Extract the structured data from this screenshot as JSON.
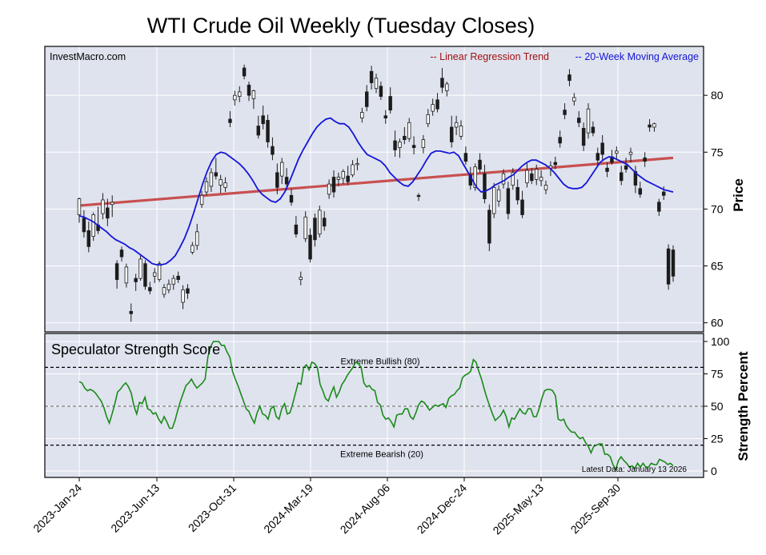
{
  "chart_data": {
    "type": "candlestick",
    "title": "WTI Crude Oil Weekly (Tuesday Closes)",
    "watermark": "InvestMacro.com",
    "legend": [
      {
        "label": "-- Linear Regression Trend",
        "color": "#a01010"
      },
      {
        "label": "-- 20-Week Moving Average",
        "color": "#1515d8"
      }
    ],
    "x_tick_labels": [
      "2023-Jan-24",
      "2023-Jun-13",
      "2023-Oct-31",
      "2024-Mar-19",
      "2024-Aug-06",
      "2024-Dec-24",
      "2025-May-13",
      "2025-Sep-30"
    ],
    "price_panel": {
      "ylabel": "Price",
      "ylim": [
        59.2,
        84.3
      ],
      "yticks": [
        60,
        65,
        70,
        75,
        80
      ],
      "regression_trend": {
        "start": 70.3,
        "end": 74.5,
        "color": "#c85050"
      },
      "moving_average_20w": [
        69.4,
        69.3,
        69.1,
        68.9,
        68.6,
        68.3,
        68.0,
        67.6,
        67.3,
        67.1,
        66.9,
        66.6,
        66.4,
        66.1,
        65.8,
        65.5,
        65.2,
        65.1,
        65.1,
        65.2,
        65.5,
        65.9,
        66.6,
        67.4,
        68.4,
        69.6,
        70.9,
        72.2,
        73.3,
        74.2,
        74.8,
        75.0,
        74.9,
        74.6,
        74.3,
        74.0,
        73.6,
        73.1,
        72.5,
        71.8,
        71.3,
        71.0,
        70.7,
        70.6,
        70.9,
        71.5,
        72.4,
        73.4,
        74.4,
        75.2,
        75.9,
        76.6,
        77.2,
        77.6,
        77.9,
        78.0,
        77.7,
        77.5,
        77.5,
        77.2,
        76.6,
        75.9,
        75.3,
        74.8,
        74.6,
        74.4,
        74.2,
        73.8,
        73.2,
        72.8,
        72.4,
        72.1,
        72.0,
        72.4,
        73.0,
        73.6,
        74.3,
        74.9,
        75.1,
        75.1,
        75.0,
        74.9,
        75.0,
        74.7,
        74.0,
        73.3,
        72.6,
        71.9,
        71.5,
        71.6,
        71.8,
        72.1,
        72.3,
        72.5,
        72.8,
        73.0,
        73.4,
        73.8,
        74.1,
        74.3,
        74.3,
        74.1,
        73.9,
        73.6,
        73.2,
        72.7,
        72.2,
        71.9,
        71.8,
        71.8,
        71.9,
        72.3,
        72.9,
        73.5,
        74.1,
        74.4,
        74.6,
        74.5,
        74.3,
        74.1,
        73.9,
        73.5,
        73.1,
        72.8,
        72.5,
        72.3,
        72.1,
        71.9,
        71.7,
        71.6,
        71.5
      ],
      "candles": [
        {
          "o": 69.5,
          "h": 71.0,
          "l": 68.8,
          "c": 70.9
        },
        {
          "o": 69.2,
          "h": 69.9,
          "l": 67.5,
          "c": 68.0
        },
        {
          "o": 68.1,
          "h": 68.9,
          "l": 66.2,
          "c": 66.7
        },
        {
          "o": 67.6,
          "h": 69.7,
          "l": 67.2,
          "c": 69.5
        },
        {
          "o": 68.6,
          "h": 70.2,
          "l": 67.8,
          "c": 68.1
        },
        {
          "o": 69.6,
          "h": 71.4,
          "l": 69.1,
          "c": 70.8
        },
        {
          "o": 70.1,
          "h": 70.9,
          "l": 68.5,
          "c": 69.2
        },
        {
          "o": 70.4,
          "h": 71.2,
          "l": 69.3,
          "c": 70.6
        },
        {
          "o": 65.2,
          "h": 65.5,
          "l": 63.0,
          "c": 63.8
        },
        {
          "o": 66.4,
          "h": 66.7,
          "l": 65.4,
          "c": 65.8
        },
        {
          "o": 63.5,
          "h": 65.2,
          "l": 63.1,
          "c": 64.9
        },
        {
          "o": 61.0,
          "h": 61.7,
          "l": 60.1,
          "c": 60.8
        },
        {
          "o": 63.9,
          "h": 64.3,
          "l": 62.8,
          "c": 63.6
        },
        {
          "o": 63.9,
          "h": 65.9,
          "l": 63.7,
          "c": 65.6
        },
        {
          "o": 65.2,
          "h": 65.5,
          "l": 62.9,
          "c": 63.2
        },
        {
          "o": 63.1,
          "h": 63.6,
          "l": 62.5,
          "c": 62.8
        },
        {
          "o": 64.1,
          "h": 64.8,
          "l": 63.5,
          "c": 64.4
        },
        {
          "o": 63.8,
          "h": 65.4,
          "l": 63.6,
          "c": 65.2
        },
        {
          "o": 62.5,
          "h": 63.4,
          "l": 62.2,
          "c": 63.1
        },
        {
          "o": 62.9,
          "h": 63.8,
          "l": 62.6,
          "c": 63.4
        },
        {
          "o": 63.4,
          "h": 64.2,
          "l": 62.9,
          "c": 63.9
        },
        {
          "o": 64.1,
          "h": 64.5,
          "l": 63.5,
          "c": 63.8
        },
        {
          "o": 61.8,
          "h": 63.3,
          "l": 61.2,
          "c": 62.9
        },
        {
          "o": 63.0,
          "h": 63.4,
          "l": 62.1,
          "c": 62.6
        },
        {
          "o": 66.2,
          "h": 67.1,
          "l": 66.0,
          "c": 66.8
        },
        {
          "o": 66.8,
          "h": 68.7,
          "l": 66.4,
          "c": 68.0
        },
        {
          "o": 70.4,
          "h": 71.6,
          "l": 70.1,
          "c": 71.2
        },
        {
          "o": 71.5,
          "h": 72.8,
          "l": 71.2,
          "c": 72.4
        },
        {
          "o": 72.0,
          "h": 73.6,
          "l": 71.5,
          "c": 73.2
        },
        {
          "o": 73.2,
          "h": 74.5,
          "l": 72.6,
          "c": 72.9
        },
        {
          "o": 72.1,
          "h": 73.0,
          "l": 71.4,
          "c": 72.6
        },
        {
          "o": 71.9,
          "h": 72.8,
          "l": 71.5,
          "c": 72.3
        },
        {
          "o": 77.9,
          "h": 78.6,
          "l": 77.2,
          "c": 77.6
        },
        {
          "o": 79.6,
          "h": 80.4,
          "l": 79.1,
          "c": 80.0
        },
        {
          "o": 79.9,
          "h": 80.8,
          "l": 79.4,
          "c": 80.3
        },
        {
          "o": 82.4,
          "h": 82.7,
          "l": 81.4,
          "c": 81.7
        },
        {
          "o": 80.9,
          "h": 81.2,
          "l": 79.5,
          "c": 80.0
        },
        {
          "o": 79.7,
          "h": 80.5,
          "l": 78.8,
          "c": 80.4
        },
        {
          "o": 77.3,
          "h": 78.2,
          "l": 76.2,
          "c": 76.5
        },
        {
          "o": 78.2,
          "h": 79.1,
          "l": 77.0,
          "c": 77.5
        },
        {
          "o": 77.8,
          "h": 78.3,
          "l": 75.4,
          "c": 75.9
        },
        {
          "o": 75.5,
          "h": 76.3,
          "l": 74.3,
          "c": 74.8
        },
        {
          "o": 73.2,
          "h": 74.0,
          "l": 71.3,
          "c": 71.9
        },
        {
          "o": 72.9,
          "h": 74.5,
          "l": 72.2,
          "c": 74.1
        },
        {
          "o": 72.8,
          "h": 73.6,
          "l": 71.7,
          "c": 72.2
        },
        {
          "o": 71.2,
          "h": 71.8,
          "l": 70.3,
          "c": 70.6
        },
        {
          "o": 68.6,
          "h": 69.4,
          "l": 67.5,
          "c": 67.8
        },
        {
          "o": 63.8,
          "h": 64.5,
          "l": 63.3,
          "c": 64.0
        },
        {
          "o": 67.4,
          "h": 69.8,
          "l": 67.1,
          "c": 69.3
        },
        {
          "o": 67.7,
          "h": 68.3,
          "l": 65.3,
          "c": 65.6
        },
        {
          "o": 69.2,
          "h": 69.6,
          "l": 66.7,
          "c": 67.3
        },
        {
          "o": 67.8,
          "h": 70.3,
          "l": 67.5,
          "c": 69.9
        },
        {
          "o": 69.2,
          "h": 69.8,
          "l": 68.1,
          "c": 68.5
        },
        {
          "o": 71.3,
          "h": 72.6,
          "l": 70.9,
          "c": 72.2
        },
        {
          "o": 72.8,
          "h": 73.4,
          "l": 71.0,
          "c": 71.5
        },
        {
          "o": 72.6,
          "h": 73.2,
          "l": 72.0,
          "c": 72.8
        },
        {
          "o": 72.7,
          "h": 73.5,
          "l": 72.2,
          "c": 73.3
        },
        {
          "o": 72.9,
          "h": 73.8,
          "l": 72.1,
          "c": 72.4
        },
        {
          "o": 73.0,
          "h": 74.3,
          "l": 72.8,
          "c": 73.9
        },
        {
          "o": 73.9,
          "h": 74.5,
          "l": 73.4,
          "c": 74.0
        },
        {
          "o": 78.0,
          "h": 78.9,
          "l": 77.6,
          "c": 78.5
        },
        {
          "o": 80.3,
          "h": 80.9,
          "l": 78.6,
          "c": 79.0
        },
        {
          "o": 82.1,
          "h": 82.6,
          "l": 80.5,
          "c": 81.1
        },
        {
          "o": 80.6,
          "h": 81.9,
          "l": 80.2,
          "c": 81.5
        },
        {
          "o": 80.8,
          "h": 81.2,
          "l": 79.6,
          "c": 79.9
        },
        {
          "o": 78.2,
          "h": 78.7,
          "l": 77.5,
          "c": 78.0
        },
        {
          "o": 79.9,
          "h": 80.7,
          "l": 78.4,
          "c": 78.7
        },
        {
          "o": 76.0,
          "h": 76.9,
          "l": 74.6,
          "c": 75.2
        },
        {
          "o": 75.4,
          "h": 76.2,
          "l": 74.5,
          "c": 75.9
        },
        {
          "o": 76.4,
          "h": 77.2,
          "l": 75.7,
          "c": 76.1
        },
        {
          "o": 76.2,
          "h": 78.0,
          "l": 75.9,
          "c": 77.6
        },
        {
          "o": 75.6,
          "h": 76.4,
          "l": 74.8,
          "c": 75.4
        },
        {
          "o": 71.2,
          "h": 71.4,
          "l": 70.7,
          "c": 71.1
        },
        {
          "o": 75.4,
          "h": 76.5,
          "l": 74.9,
          "c": 76.1
        },
        {
          "o": 77.5,
          "h": 78.8,
          "l": 77.2,
          "c": 78.3
        },
        {
          "o": 78.6,
          "h": 79.7,
          "l": 78.2,
          "c": 79.2
        },
        {
          "o": 79.6,
          "h": 80.2,
          "l": 78.5,
          "c": 78.8
        },
        {
          "o": 81.5,
          "h": 82.4,
          "l": 80.2,
          "c": 80.7
        },
        {
          "o": 80.4,
          "h": 81.2,
          "l": 79.9,
          "c": 81.0
        },
        {
          "o": 77.2,
          "h": 78.2,
          "l": 75.4,
          "c": 75.9
        },
        {
          "o": 77.2,
          "h": 78.2,
          "l": 76.5,
          "c": 77.6
        },
        {
          "o": 76.4,
          "h": 77.8,
          "l": 76.1,
          "c": 77.3
        },
        {
          "o": 74.9,
          "h": 75.5,
          "l": 73.9,
          "c": 74.2
        },
        {
          "o": 73.0,
          "h": 73.7,
          "l": 71.7,
          "c": 72.1
        },
        {
          "o": 71.9,
          "h": 74.0,
          "l": 71.6,
          "c": 73.7
        },
        {
          "o": 74.3,
          "h": 74.9,
          "l": 73.2,
          "c": 73.5
        },
        {
          "o": 73.1,
          "h": 73.9,
          "l": 70.5,
          "c": 70.9
        },
        {
          "o": 69.9,
          "h": 70.4,
          "l": 66.3,
          "c": 67.0
        },
        {
          "o": 69.6,
          "h": 72.3,
          "l": 69.2,
          "c": 71.9
        },
        {
          "o": 70.7,
          "h": 72.1,
          "l": 70.2,
          "c": 71.7
        },
        {
          "o": 72.2,
          "h": 73.5,
          "l": 71.8,
          "c": 73.1
        },
        {
          "o": 71.8,
          "h": 72.4,
          "l": 69.1,
          "c": 69.6
        },
        {
          "o": 72.1,
          "h": 73.6,
          "l": 71.7,
          "c": 73.2
        },
        {
          "o": 71.9,
          "h": 72.6,
          "l": 70.4,
          "c": 70.8
        },
        {
          "o": 70.8,
          "h": 71.6,
          "l": 69.2,
          "c": 69.5
        },
        {
          "o": 72.3,
          "h": 74.0,
          "l": 71.9,
          "c": 73.4
        },
        {
          "o": 73.1,
          "h": 73.6,
          "l": 72.2,
          "c": 72.5
        },
        {
          "o": 72.6,
          "h": 73.9,
          "l": 72.1,
          "c": 73.5
        },
        {
          "o": 72.5,
          "h": 73.4,
          "l": 72.0,
          "c": 72.8
        },
        {
          "o": 71.7,
          "h": 72.5,
          "l": 71.3,
          "c": 72.1
        },
        {
          "o": 73.6,
          "h": 74.2,
          "l": 72.9,
          "c": 73.8
        },
        {
          "o": 74.1,
          "h": 74.6,
          "l": 73.5,
          "c": 73.9
        },
        {
          "o": 76.3,
          "h": 76.9,
          "l": 75.4,
          "c": 75.8
        },
        {
          "o": 78.7,
          "h": 79.3,
          "l": 77.9,
          "c": 78.3
        },
        {
          "o": 81.8,
          "h": 82.3,
          "l": 80.8,
          "c": 81.3
        },
        {
          "o": 79.5,
          "h": 80.2,
          "l": 79.1,
          "c": 79.8
        },
        {
          "o": 78.0,
          "h": 78.6,
          "l": 77.2,
          "c": 77.6
        },
        {
          "o": 77.1,
          "h": 77.6,
          "l": 75.1,
          "c": 75.6
        },
        {
          "o": 76.7,
          "h": 79.3,
          "l": 76.2,
          "c": 78.8
        },
        {
          "o": 77.2,
          "h": 77.7,
          "l": 76.4,
          "c": 76.7
        },
        {
          "o": 74.9,
          "h": 75.4,
          "l": 73.8,
          "c": 74.3
        },
        {
          "o": 75.8,
          "h": 76.5,
          "l": 74.2,
          "c": 74.8
        },
        {
          "o": 73.6,
          "h": 74.1,
          "l": 72.8,
          "c": 73.3
        },
        {
          "o": 74.6,
          "h": 75.2,
          "l": 73.9,
          "c": 74.1
        },
        {
          "o": 74.9,
          "h": 75.5,
          "l": 74.3,
          "c": 75.1
        },
        {
          "o": 73.2,
          "h": 73.8,
          "l": 72.1,
          "c": 72.5
        },
        {
          "o": 73.8,
          "h": 74.5,
          "l": 73.2,
          "c": 73.5
        },
        {
          "o": 74.8,
          "h": 75.4,
          "l": 74.1,
          "c": 75.0
        },
        {
          "o": 73.3,
          "h": 73.8,
          "l": 71.4,
          "c": 72.1
        },
        {
          "o": 71.8,
          "h": 72.4,
          "l": 71.0,
          "c": 71.3
        },
        {
          "o": 74.5,
          "h": 75.0,
          "l": 73.7,
          "c": 74.2
        },
        {
          "o": 77.4,
          "h": 77.9,
          "l": 76.8,
          "c": 77.2
        },
        {
          "o": 77.2,
          "h": 77.6,
          "l": 76.8,
          "c": 77.5
        },
        {
          "o": 70.6,
          "h": 70.9,
          "l": 69.4,
          "c": 69.8
        },
        {
          "o": 71.5,
          "h": 72.0,
          "l": 70.8,
          "c": 71.2
        },
        {
          "o": 66.5,
          "h": 66.9,
          "l": 62.9,
          "c": 63.4
        },
        {
          "o": 66.4,
          "h": 66.8,
          "l": 63.6,
          "c": 64.1
        }
      ]
    },
    "strength_panel": {
      "title": "Speculator Strength Score",
      "ylabel": "Strength Percent",
      "ylim": [
        0,
        100
      ],
      "yticks": [
        0,
        25,
        50,
        75,
        100
      ],
      "extreme_bullish": {
        "value": 80,
        "label": "Extreme Bullish (80)"
      },
      "extreme_bearish": {
        "value": 20,
        "label": "Extreme Bearish (20)"
      },
      "midline": 50,
      "footnote": "Latest Data: January 13 2026",
      "values": [
        69,
        68,
        64,
        62,
        63,
        62,
        60,
        57,
        54,
        49,
        42,
        37,
        44,
        52,
        61,
        63,
        66,
        68,
        65,
        60,
        50,
        44,
        53,
        52,
        57,
        48,
        47,
        44,
        45,
        40,
        37,
        42,
        38,
        33,
        33,
        39,
        47,
        54,
        60,
        66,
        68,
        71,
        67,
        64,
        66,
        68,
        71,
        88,
        96,
        100,
        100,
        100,
        97,
        97,
        92,
        88,
        77,
        71,
        66,
        60,
        54,
        48,
        46,
        41,
        37,
        45,
        50,
        44,
        43,
        40,
        48,
        50,
        42,
        40,
        48,
        52,
        44,
        45,
        52,
        60,
        68,
        67,
        80,
        82,
        78,
        84,
        83,
        80,
        67,
        62,
        56,
        54,
        60,
        65,
        57,
        61,
        67,
        70,
        74,
        77,
        80,
        84,
        83,
        80,
        68,
        65,
        66,
        63,
        62,
        53,
        51,
        43,
        40,
        41,
        38,
        34,
        43,
        44,
        44,
        48,
        48,
        42,
        40,
        45,
        51,
        54,
        53,
        50,
        47,
        49,
        51,
        50,
        51,
        52,
        49,
        56,
        58,
        59,
        62,
        64,
        72,
        74,
        75,
        77,
        86,
        84,
        77,
        71,
        63,
        56,
        50,
        44,
        39,
        41,
        43,
        47,
        42,
        34,
        41,
        40,
        44,
        48,
        45,
        44,
        48,
        48,
        42,
        42,
        48,
        56,
        62,
        63,
        63,
        62,
        58,
        40,
        39,
        40,
        35,
        32,
        30,
        30,
        27,
        25,
        26,
        22,
        19,
        14,
        19,
        20,
        21,
        21,
        13,
        13,
        11,
        5,
        1,
        8,
        11,
        8,
        6,
        3,
        4,
        2,
        6,
        3,
        6,
        3,
        3,
        6,
        5,
        5,
        9,
        8,
        7,
        5,
        6,
        4
      ],
      "line_color": "#1a8a1a"
    },
    "colors": {
      "panel_bg": "#dfe3ee",
      "grid": "#ffffff",
      "candle_up": "#ffffff",
      "candle_down": "#1c1c1c",
      "candle_edge": "#1c1c1c"
    }
  }
}
